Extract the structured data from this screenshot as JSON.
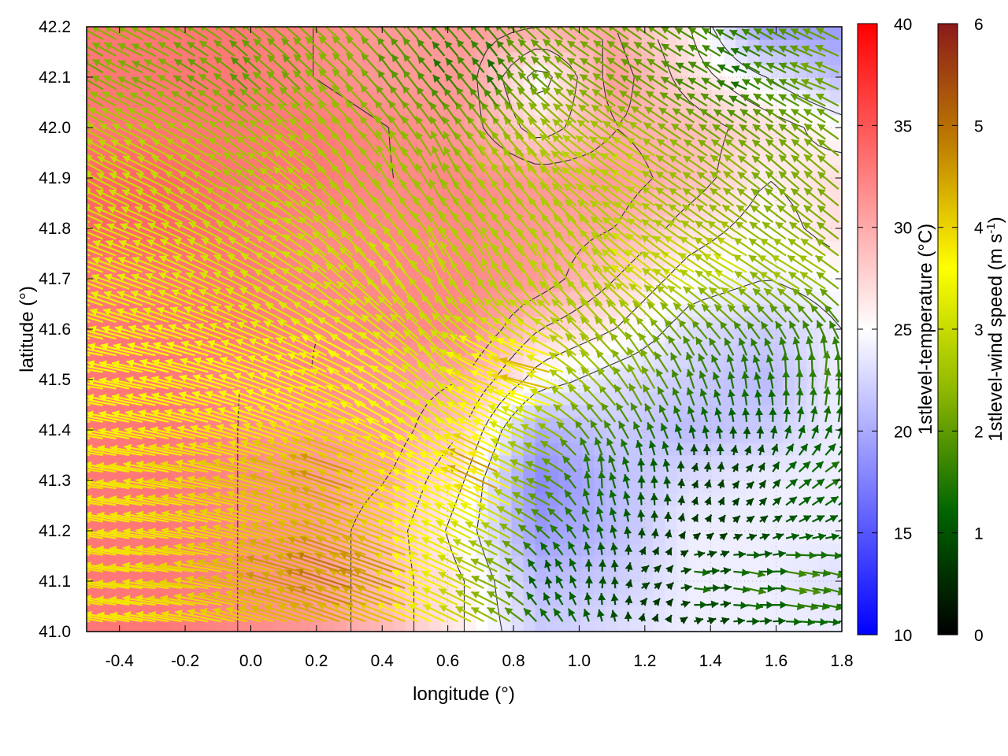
{
  "chart_data": {
    "type": "heatmap",
    "title": "",
    "xlabel": "longitude (°)",
    "ylabel": "latitude (°)",
    "xlim": [
      -0.5,
      1.8
    ],
    "ylim": [
      41.0,
      42.2
    ],
    "x_ticks": [
      {
        "value": -0.4,
        "label": "-0.4"
      },
      {
        "value": -0.2,
        "label": "-0.2"
      },
      {
        "value": 0.0,
        "label": "0.0"
      },
      {
        "value": 0.2,
        "label": "0.2"
      },
      {
        "value": 0.4,
        "label": "0.4"
      },
      {
        "value": 0.6,
        "label": "0.6"
      },
      {
        "value": 0.8,
        "label": "0.8"
      },
      {
        "value": 1.0,
        "label": "1.0"
      },
      {
        "value": 1.2,
        "label": "1.2"
      },
      {
        "value": 1.4,
        "label": "1.4"
      },
      {
        "value": 1.6,
        "label": "1.6"
      },
      {
        "value": 1.8,
        "label": "1.8"
      }
    ],
    "y_ticks": [
      {
        "value": 41.0,
        "label": "41.0"
      },
      {
        "value": 41.1,
        "label": "41.1"
      },
      {
        "value": 41.2,
        "label": "41.2"
      },
      {
        "value": 41.3,
        "label": "41.3"
      },
      {
        "value": 41.4,
        "label": "41.4"
      },
      {
        "value": 41.5,
        "label": "41.5"
      },
      {
        "value": 41.6,
        "label": "41.6"
      },
      {
        "value": 41.7,
        "label": "41.7"
      },
      {
        "value": 41.8,
        "label": "41.8"
      },
      {
        "value": 41.9,
        "label": "41.9"
      },
      {
        "value": 42.0,
        "label": "42.0"
      },
      {
        "value": 42.1,
        "label": "42.1"
      },
      {
        "value": 42.2,
        "label": "42.2"
      }
    ],
    "grid": true,
    "temperature_field": {
      "label": "1stlevel-temperature (°C)",
      "range": [
        10,
        40
      ],
      "ticks": [
        {
          "value": 10,
          "label": "10"
        },
        {
          "value": 15,
          "label": "15"
        },
        {
          "value": 20,
          "label": "20"
        },
        {
          "value": 25,
          "label": "25"
        },
        {
          "value": 30,
          "label": "30"
        },
        {
          "value": 35,
          "label": "35"
        },
        {
          "value": 40,
          "label": "40"
        }
      ],
      "colormap": [
        "#0000ff",
        "#ffffff",
        "#ff0000"
      ],
      "mid_value": 25,
      "lon": [
        -0.5,
        -0.27,
        -0.04,
        0.19,
        0.42,
        0.65,
        0.88,
        1.11,
        1.34,
        1.57,
        1.8
      ],
      "lat": [
        41.0,
        41.1,
        41.2,
        41.3,
        41.4,
        41.5,
        41.6,
        41.7,
        41.8,
        41.9,
        42.0,
        42.1,
        42.2
      ],
      "values": [
        [
          33,
          33,
          32,
          31,
          29,
          26,
          22,
          23,
          24,
          24,
          24
        ],
        [
          33,
          33,
          32,
          31,
          29,
          26,
          21,
          22,
          24,
          24,
          23
        ],
        [
          33,
          33,
          32,
          31,
          29,
          25,
          19,
          21,
          24,
          24,
          24
        ],
        [
          33,
          33,
          32,
          31,
          30,
          26,
          18,
          21,
          23,
          24,
          24
        ],
        [
          33,
          33,
          32,
          31,
          31,
          28,
          20,
          22,
          21,
          22,
          24
        ],
        [
          33,
          33,
          32,
          32,
          31,
          30,
          25,
          23,
          22,
          21,
          24
        ],
        [
          33,
          33,
          33,
          32,
          32,
          32,
          28,
          26,
          23,
          22,
          24
        ],
        [
          33,
          33,
          33,
          32,
          32,
          32,
          31,
          28,
          25,
          24,
          25
        ],
        [
          34,
          34,
          33,
          32,
          32,
          32,
          31,
          30,
          27,
          25,
          27
        ],
        [
          34,
          34,
          33,
          33,
          32,
          32,
          31,
          31,
          29,
          26,
          27
        ],
        [
          33,
          33,
          33,
          33,
          32,
          31,
          27,
          30,
          29,
          27,
          25
        ],
        [
          33,
          33,
          33,
          32,
          31,
          31,
          25,
          31,
          27,
          24,
          21
        ],
        [
          33,
          33,
          33,
          32,
          31,
          31,
          30,
          30,
          26,
          19,
          19
        ]
      ]
    },
    "wind_field": {
      "label": "1stlevel-wind speed (m s-1)",
      "label_main": "1stlevel-wind speed (m s",
      "label_sup": "-1",
      "label_tail": ")",
      "range": [
        0,
        6
      ],
      "ticks": [
        {
          "value": 0,
          "label": "0"
        },
        {
          "value": 1,
          "label": "1"
        },
        {
          "value": 2,
          "label": "2"
        },
        {
          "value": 3,
          "label": "3"
        },
        {
          "value": 4,
          "label": "4"
        },
        {
          "value": 5,
          "label": "5"
        },
        {
          "value": 6,
          "label": "6"
        }
      ],
      "colormap": [
        "#000000",
        "#006400",
        "#8fb800",
        "#ffff00",
        "#c08000",
        "#8b1a1a"
      ],
      "vectors": [
        {
          "lon": -0.45,
          "lat": 41.1,
          "u": -4.0,
          "v": 0.5
        },
        {
          "lon": -0.3,
          "lat": 41.1,
          "u": -4.0,
          "v": 0.3
        },
        {
          "lon": -0.15,
          "lat": 41.1,
          "u": -4.2,
          "v": 0.3
        },
        {
          "lon": 0.0,
          "lat": 41.1,
          "u": -4.4,
          "v": 0.8
        },
        {
          "lon": 0.15,
          "lat": 41.1,
          "u": -4.8,
          "v": 1.2
        },
        {
          "lon": 0.3,
          "lat": 41.1,
          "u": -5.2,
          "v": 1.6
        },
        {
          "lon": 0.45,
          "lat": 41.1,
          "u": -5.0,
          "v": 1.6
        },
        {
          "lon": 0.6,
          "lat": 41.1,
          "u": -3.2,
          "v": 1.4
        },
        {
          "lon": 0.75,
          "lat": 41.1,
          "u": -2.0,
          "v": 0.8
        },
        {
          "lon": 0.9,
          "lat": 41.1,
          "u": 0.5,
          "v": 0.8
        },
        {
          "lon": 1.05,
          "lat": 41.1,
          "u": 0.6,
          "v": 0.9
        },
        {
          "lon": 1.2,
          "lat": 41.1,
          "u": 1.2,
          "v": 0.2
        },
        {
          "lon": 1.35,
          "lat": 41.1,
          "u": 2.0,
          "v": -0.6
        },
        {
          "lon": 1.5,
          "lat": 41.1,
          "u": 2.2,
          "v": -0.8
        },
        {
          "lon": 1.65,
          "lat": 41.1,
          "u": 2.4,
          "v": -0.8
        },
        {
          "lon": 1.75,
          "lat": 41.1,
          "u": 2.0,
          "v": -0.8
        },
        {
          "lon": -0.45,
          "lat": 41.3,
          "u": -4.0,
          "v": 0.4
        },
        {
          "lon": -0.3,
          "lat": 41.3,
          "u": -4.0,
          "v": 0.4
        },
        {
          "lon": -0.15,
          "lat": 41.3,
          "u": -4.2,
          "v": 0.5
        },
        {
          "lon": 0.0,
          "lat": 41.3,
          "u": -4.4,
          "v": 0.7
        },
        {
          "lon": 0.15,
          "lat": 41.3,
          "u": -4.6,
          "v": 1.0
        },
        {
          "lon": 0.3,
          "lat": 41.3,
          "u": -5.0,
          "v": 1.4
        },
        {
          "lon": 0.45,
          "lat": 41.3,
          "u": -4.2,
          "v": 1.4
        },
        {
          "lon": 0.6,
          "lat": 41.3,
          "u": -3.5,
          "v": 1.5
        },
        {
          "lon": 0.75,
          "lat": 41.3,
          "u": -5.2,
          "v": 2.2
        },
        {
          "lon": 0.9,
          "lat": 41.3,
          "u": -2.0,
          "v": 0.4
        },
        {
          "lon": 1.05,
          "lat": 41.3,
          "u": 0.8,
          "v": 1.6
        },
        {
          "lon": 1.2,
          "lat": 41.3,
          "u": 0.4,
          "v": 1.0
        },
        {
          "lon": 1.35,
          "lat": 41.3,
          "u": 0.6,
          "v": 0.5
        },
        {
          "lon": 1.5,
          "lat": 41.3,
          "u": 0.9,
          "v": 0.4
        },
        {
          "lon": 1.65,
          "lat": 41.3,
          "u": 1.4,
          "v": 0.8
        },
        {
          "lon": 1.75,
          "lat": 41.3,
          "u": 1.6,
          "v": 0.8
        },
        {
          "lon": -0.45,
          "lat": 41.5,
          "u": -3.8,
          "v": 0.4
        },
        {
          "lon": -0.3,
          "lat": 41.5,
          "u": -3.8,
          "v": 0.6
        },
        {
          "lon": -0.15,
          "lat": 41.5,
          "u": -3.8,
          "v": 0.8
        },
        {
          "lon": 0.0,
          "lat": 41.5,
          "u": -3.6,
          "v": 1.0
        },
        {
          "lon": 0.15,
          "lat": 41.5,
          "u": -3.4,
          "v": 1.2
        },
        {
          "lon": 0.3,
          "lat": 41.5,
          "u": -3.8,
          "v": 1.6
        },
        {
          "lon": 0.45,
          "lat": 41.5,
          "u": -3.0,
          "v": 2.0
        },
        {
          "lon": 0.6,
          "lat": 41.5,
          "u": -2.0,
          "v": 2.6
        },
        {
          "lon": 0.75,
          "lat": 41.5,
          "u": -4.5,
          "v": 1.2
        },
        {
          "lon": 0.9,
          "lat": 41.5,
          "u": -5.8,
          "v": 0.6
        },
        {
          "lon": 1.05,
          "lat": 41.5,
          "u": -2.0,
          "v": 2.0
        },
        {
          "lon": 1.2,
          "lat": 41.5,
          "u": -1.0,
          "v": 2.4
        },
        {
          "lon": 1.35,
          "lat": 41.5,
          "u": -0.2,
          "v": 1.8
        },
        {
          "lon": 1.5,
          "lat": 41.5,
          "u": 0.2,
          "v": 1.6
        },
        {
          "lon": 1.65,
          "lat": 41.5,
          "u": 0.4,
          "v": 1.8
        },
        {
          "lon": 1.75,
          "lat": 41.5,
          "u": 0.6,
          "v": 2.0
        },
        {
          "lon": -0.45,
          "lat": 41.7,
          "u": -3.2,
          "v": 1.2
        },
        {
          "lon": -0.3,
          "lat": 41.7,
          "u": -3.2,
          "v": 1.2
        },
        {
          "lon": -0.15,
          "lat": 41.7,
          "u": -3.0,
          "v": 1.4
        },
        {
          "lon": 0.0,
          "lat": 41.7,
          "u": -2.8,
          "v": 1.4
        },
        {
          "lon": 0.15,
          "lat": 41.7,
          "u": -2.6,
          "v": 1.8
        },
        {
          "lon": 0.3,
          "lat": 41.7,
          "u": -2.0,
          "v": 2.4
        },
        {
          "lon": 0.45,
          "lat": 41.7,
          "u": -1.6,
          "v": 3.0
        },
        {
          "lon": 0.6,
          "lat": 41.7,
          "u": -0.8,
          "v": 3.2
        },
        {
          "lon": 0.75,
          "lat": 41.7,
          "u": -0.6,
          "v": 3.0
        },
        {
          "lon": 0.9,
          "lat": 41.7,
          "u": -1.0,
          "v": 3.0
        },
        {
          "lon": 1.05,
          "lat": 41.7,
          "u": -1.6,
          "v": 2.8
        },
        {
          "lon": 1.2,
          "lat": 41.7,
          "u": -3.2,
          "v": 2.2
        },
        {
          "lon": 1.35,
          "lat": 41.7,
          "u": -3.4,
          "v": 1.8
        },
        {
          "lon": 1.5,
          "lat": 41.7,
          "u": -3.6,
          "v": 1.6
        },
        {
          "lon": 1.65,
          "lat": 41.7,
          "u": -3.0,
          "v": 1.4
        },
        {
          "lon": 1.75,
          "lat": 41.7,
          "u": -2.6,
          "v": 1.4
        },
        {
          "lon": -0.45,
          "lat": 41.9,
          "u": -2.6,
          "v": 1.6
        },
        {
          "lon": -0.3,
          "lat": 41.9,
          "u": -2.8,
          "v": 1.4
        },
        {
          "lon": -0.15,
          "lat": 41.9,
          "u": -2.4,
          "v": 1.6
        },
        {
          "lon": 0.0,
          "lat": 41.9,
          "u": -1.8,
          "v": 1.8
        },
        {
          "lon": 0.15,
          "lat": 41.9,
          "u": -2.2,
          "v": 2.0
        },
        {
          "lon": 0.3,
          "lat": 41.9,
          "u": -1.6,
          "v": 2.2
        },
        {
          "lon": 0.45,
          "lat": 41.9,
          "u": -0.8,
          "v": 2.6
        },
        {
          "lon": 0.6,
          "lat": 41.9,
          "u": -0.6,
          "v": 2.4
        },
        {
          "lon": 0.75,
          "lat": 41.9,
          "u": -1.4,
          "v": 2.6
        },
        {
          "lon": 0.9,
          "lat": 41.9,
          "u": -2.0,
          "v": 2.2
        },
        {
          "lon": 1.05,
          "lat": 41.9,
          "u": -2.6,
          "v": 1.8
        },
        {
          "lon": 1.2,
          "lat": 41.9,
          "u": -3.0,
          "v": 1.6
        },
        {
          "lon": 1.35,
          "lat": 41.9,
          "u": -2.2,
          "v": 1.4
        },
        {
          "lon": 1.5,
          "lat": 41.9,
          "u": -2.0,
          "v": 1.6
        },
        {
          "lon": 1.65,
          "lat": 41.9,
          "u": -1.6,
          "v": 1.6
        },
        {
          "lon": 1.75,
          "lat": 41.9,
          "u": -1.8,
          "v": 1.6
        },
        {
          "lon": -0.45,
          "lat": 42.1,
          "u": -1.6,
          "v": 1.0
        },
        {
          "lon": -0.3,
          "lat": 42.1,
          "u": -1.8,
          "v": 0.8
        },
        {
          "lon": -0.15,
          "lat": 42.1,
          "u": -1.4,
          "v": 1.0
        },
        {
          "lon": 0.0,
          "lat": 42.1,
          "u": -1.0,
          "v": 1.2
        },
        {
          "lon": 0.15,
          "lat": 42.1,
          "u": -1.2,
          "v": 1.4
        },
        {
          "lon": 0.3,
          "lat": 42.1,
          "u": -1.6,
          "v": 1.6
        },
        {
          "lon": 0.45,
          "lat": 42.1,
          "u": -0.8,
          "v": 1.4
        },
        {
          "lon": 0.6,
          "lat": 42.1,
          "u": -0.6,
          "v": 0.8
        },
        {
          "lon": 0.75,
          "lat": 42.1,
          "u": -0.4,
          "v": 0.8
        },
        {
          "lon": 0.9,
          "lat": 42.1,
          "u": -1.4,
          "v": 1.2
        },
        {
          "lon": 1.05,
          "lat": 42.1,
          "u": -1.8,
          "v": 1.0
        },
        {
          "lon": 1.2,
          "lat": 42.1,
          "u": -1.6,
          "v": 1.0
        },
        {
          "lon": 1.35,
          "lat": 42.1,
          "u": -1.4,
          "v": 0.6
        },
        {
          "lon": 1.5,
          "lat": 42.1,
          "u": -1.0,
          "v": 0.2
        },
        {
          "lon": 1.65,
          "lat": 42.1,
          "u": -1.6,
          "v": 0.6
        },
        {
          "lon": 1.75,
          "lat": 42.1,
          "u": -2.2,
          "v": 0.6
        }
      ]
    },
    "contour_color": "#333333"
  }
}
